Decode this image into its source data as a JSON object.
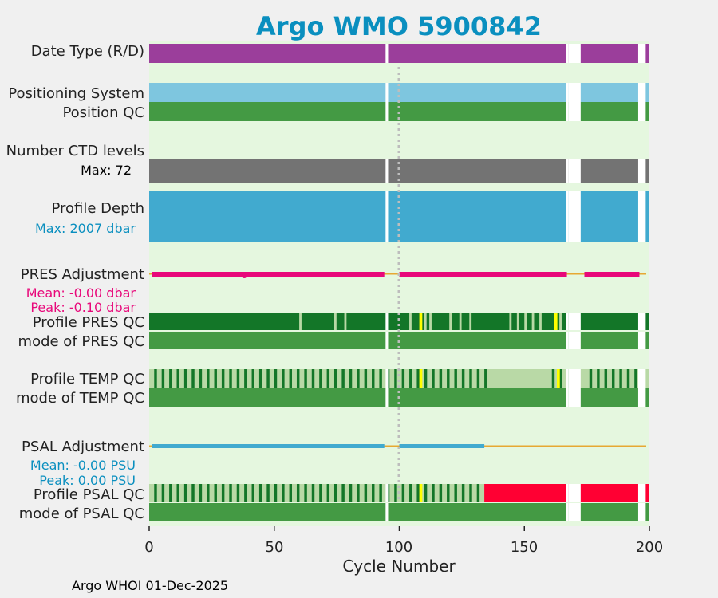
{
  "chart_data": {
    "type": "table",
    "title": "Argo WMO 5900842",
    "xlabel": "Cycle Number",
    "xlim": [
      0,
      200
    ],
    "x_ticks": [
      "0",
      "50",
      "100",
      "150",
      "200"
    ],
    "footer": "Argo WHOI 01-Dec-2025",
    "rows": [
      {
        "label": "Date Type (R/D)"
      },
      {
        "label": "Positioning System"
      },
      {
        "label": "Position QC"
      },
      {
        "label": "Number CTD levels"
      },
      {
        "label": "Profile Depth"
      },
      {
        "label": "PRES Adjustment"
      },
      {
        "label": "Profile PRES QC"
      },
      {
        "label": "mode of PRES QC"
      },
      {
        "label": "Profile TEMP QC"
      },
      {
        "label": "mode of TEMP QC"
      },
      {
        "label": "PSAL Adjustment"
      },
      {
        "label": "Profile PSAL QC"
      },
      {
        "label": "mode of PSAL QC"
      }
    ],
    "annotations": {
      "ctd_max": "Max: 72",
      "depth_max": "Max: 2007 dbar",
      "pres_mean": "Mean: -0.00 dbar",
      "pres_peak": "Peak: -0.10 dbar",
      "psal_mean": "Mean: -0.00 PSU",
      "psal_peak": "Peak: 0.00 PSU"
    },
    "cycle_gaps": [
      [
        95,
        96
      ],
      [
        167,
        168
      ],
      [
        196,
        197
      ],
      [
        168,
        173
      ],
      [
        197,
        199
      ]
    ],
    "colors": {
      "plot_bg": "#e5f7df",
      "delayed_mode": "#9b3e9b",
      "positioning": "#7ec6df",
      "qc_good": "#449a44",
      "qc_profile_A": "#137628",
      "qc_profile_B": "#b9d9a6",
      "qc_flag_yellow": "#ffff00",
      "qc_flag_red": "#ff0033",
      "ctd_levels": "#737373",
      "profile_depth": "#41aacf",
      "pres_adjustment": "#e8087a",
      "psal_adjustment": "#41aacf",
      "zero_line": "#e6a833",
      "title_color": "#0a8fbf"
    }
  }
}
